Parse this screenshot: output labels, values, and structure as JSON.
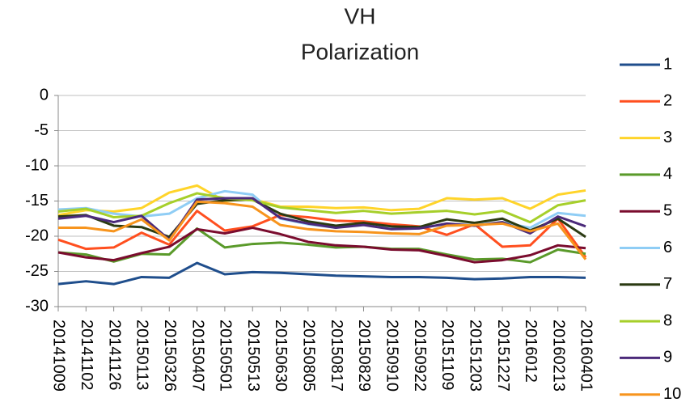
{
  "chart_data": {
    "type": "line",
    "title": [
      "VH",
      "Polarization"
    ],
    "categories": [
      "20141009",
      "20141102",
      "20141126",
      "20150113",
      "20150326",
      "20150407",
      "20150501",
      "20150513",
      "20150630",
      "20150805",
      "20150817",
      "20150829",
      "20150910",
      "20150922",
      "20151109",
      "20151203",
      "20151227",
      "2016012",
      "20160213",
      "20160401"
    ],
    "ylim": [
      -30,
      0
    ],
    "yticks": [
      0,
      -5,
      -10,
      -15,
      -20,
      -25,
      -30
    ],
    "grid": true,
    "legend": "right",
    "series": [
      {
        "name": "1",
        "color": "#1f4e8c",
        "values": [
          -26.8,
          -26.4,
          -26.8,
          -25.8,
          -25.9,
          -23.8,
          -25.4,
          -25.1,
          -25.2,
          -25.4,
          -25.6,
          -25.7,
          -25.8,
          -25.8,
          -25.9,
          -26.1,
          -26.0,
          -25.8,
          -25.8,
          -25.9
        ]
      },
      {
        "name": "2",
        "color": "#ff4f1f",
        "values": [
          -20.5,
          -21.8,
          -21.6,
          -19.5,
          -21.2,
          -16.4,
          -19.2,
          -18.6,
          -17.0,
          -17.3,
          -17.8,
          -17.9,
          -18.3,
          -18.6,
          -19.8,
          -18.3,
          -21.5,
          -21.3,
          -17.5,
          -23.0
        ]
      },
      {
        "name": "3",
        "color": "#ffd42a",
        "values": [
          -17.0,
          -16.3,
          -16.5,
          -16.0,
          -13.8,
          -12.8,
          -15.0,
          -14.7,
          -15.8,
          -15.8,
          -16.0,
          -15.9,
          -16.3,
          -16.1,
          -14.6,
          -14.8,
          -14.6,
          -16.1,
          -14.1,
          -13.5
        ]
      },
      {
        "name": "4",
        "color": "#5a9a2a",
        "values": [
          -22.3,
          -22.6,
          -23.6,
          -22.5,
          -22.6,
          -18.9,
          -21.6,
          -21.1,
          -20.9,
          -21.2,
          -21.6,
          -21.5,
          -21.8,
          -21.8,
          -22.6,
          -23.3,
          -23.2,
          -23.7,
          -21.9,
          -22.5
        ]
      },
      {
        "name": "5",
        "color": "#7a0c2e",
        "values": [
          -22.3,
          -23.0,
          -23.4,
          -22.4,
          -21.5,
          -19.0,
          -19.6,
          -18.8,
          -19.7,
          -20.8,
          -21.3,
          -21.5,
          -21.9,
          -22.0,
          -22.8,
          -23.7,
          -23.4,
          -22.7,
          -21.3,
          -21.7
        ]
      },
      {
        "name": "6",
        "color": "#8fcdf5",
        "values": [
          -16.2,
          -16.0,
          -16.8,
          -17.2,
          -16.8,
          -14.6,
          -13.6,
          -14.1,
          -17.5,
          -18.3,
          -18.8,
          -18.2,
          -18.9,
          -18.8,
          -18.3,
          -18.4,
          -18.0,
          -18.8,
          -16.7,
          -17.1
        ]
      },
      {
        "name": "7",
        "color": "#2b3a12",
        "values": [
          -17.2,
          -17.0,
          -18.5,
          -18.7,
          -20.1,
          -15.4,
          -14.9,
          -14.8,
          -16.8,
          -17.9,
          -18.5,
          -18.1,
          -18.6,
          -18.7,
          -17.6,
          -18.1,
          -17.5,
          -19.2,
          -17.5,
          -20.1
        ]
      },
      {
        "name": "8",
        "color": "#a6cf2a",
        "values": [
          -16.5,
          -16.1,
          -17.3,
          -17.1,
          -15.3,
          -13.9,
          -14.6,
          -14.9,
          -15.9,
          -16.3,
          -16.7,
          -16.4,
          -16.8,
          -16.6,
          -16.4,
          -16.9,
          -16.4,
          -18.0,
          -15.6,
          -14.9
        ]
      },
      {
        "name": "9",
        "color": "#4b2a7a",
        "values": [
          -17.5,
          -17.1,
          -18.0,
          -17.1,
          -20.5,
          -14.8,
          -14.6,
          -14.6,
          -17.4,
          -18.2,
          -18.8,
          -18.4,
          -19.0,
          -18.9,
          -18.2,
          -18.5,
          -18.0,
          -19.6,
          -17.2,
          -18.6
        ]
      },
      {
        "name": "10",
        "color": "#f7941d",
        "values": [
          -18.8,
          -18.8,
          -19.3,
          -17.6,
          -20.6,
          -15.1,
          -15.3,
          -15.8,
          -18.4,
          -19.0,
          -19.3,
          -19.4,
          -19.6,
          -19.7,
          -18.5,
          -18.4,
          -18.2,
          -19.3,
          -18.2,
          -23.3
        ]
      }
    ]
  }
}
